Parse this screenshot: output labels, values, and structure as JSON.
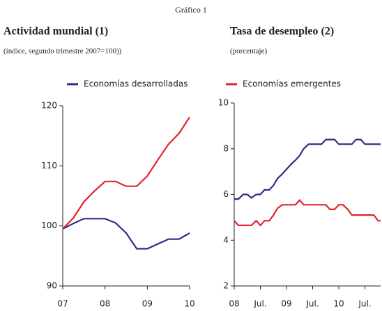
{
  "title": "Gráfico 1",
  "chart_data": [
    {
      "type": "line",
      "title": "Actividad mundial (1)",
      "subtitle": "(índice, segundo trimestre 2007=100))",
      "xlim": [
        2007,
        2010
      ],
      "ylim": [
        90,
        120
      ],
      "xticks": [
        {
          "value": 2007,
          "label": "07"
        },
        {
          "value": 2008,
          "label": "08"
        },
        {
          "value": 2009,
          "label": "09"
        },
        {
          "value": 2010,
          "label": "10"
        }
      ],
      "yticks": [
        90,
        100,
        110,
        120
      ],
      "x": [
        2007,
        2007.25,
        2007.5,
        2007.75,
        2008,
        2008.25,
        2008.5,
        2008.75,
        2009,
        2009.25,
        2009.5,
        2009.75,
        2010
      ],
      "series": [
        {
          "name": "Economías desarrolladas",
          "color": "#2b2f86",
          "values": [
            99.5,
            100.4,
            101.2,
            101.2,
            101.2,
            100.5,
            98.8,
            96.2,
            96.2,
            97,
            97.8,
            97.8,
            98.8
          ]
        },
        {
          "name": "Economías emergentes",
          "color": "#e3222b",
          "values": [
            99.5,
            101.3,
            104,
            105.8,
            107.4,
            107.4,
            106.6,
            106.6,
            108.3,
            111,
            113.6,
            115.4,
            118.1
          ]
        }
      ]
    },
    {
      "type": "line",
      "title": "Tasa de desempleo (2)",
      "subtitle": "(porcentaje)",
      "xlim": [
        2008,
        2010.8
      ],
      "ylim": [
        2,
        10
      ],
      "xticks": [
        {
          "value": 2008,
          "label": "08"
        },
        {
          "value": 2008.5,
          "label": "Jul."
        },
        {
          "value": 2009,
          "label": "09"
        },
        {
          "value": 2009.5,
          "label": "Jul."
        },
        {
          "value": 2010,
          "label": "10"
        },
        {
          "value": 2010.5,
          "label": "Jul."
        }
      ],
      "yticks": [
        2,
        4,
        6,
        8,
        10
      ],
      "x": [
        2008,
        2008.08,
        2008.17,
        2008.25,
        2008.33,
        2008.42,
        2008.5,
        2008.58,
        2008.67,
        2008.75,
        2008.83,
        2008.92,
        2009,
        2009.08,
        2009.17,
        2009.25,
        2009.33,
        2009.42,
        2009.5,
        2009.58,
        2009.67,
        2009.75,
        2009.83,
        2009.92,
        2010,
        2010.08,
        2010.17,
        2010.25,
        2010.33,
        2010.42,
        2010.5,
        2010.58,
        2010.67,
        2010.75,
        2010.8
      ],
      "series": [
        {
          "color": "#2b2f86",
          "values": [
            5.8,
            5.8,
            6.0,
            6.0,
            5.85,
            6.0,
            6.0,
            6.2,
            6.2,
            6.4,
            6.7,
            6.9,
            7.1,
            7.3,
            7.5,
            7.7,
            8.0,
            8.2,
            8.2,
            8.2,
            8.2,
            8.4,
            8.4,
            8.4,
            8.2,
            8.2,
            8.2,
            8.2,
            8.4,
            8.4,
            8.2,
            8.2,
            8.2,
            8.2,
            8.2
          ]
        },
        {
          "color": "#e3222b",
          "values": [
            4.85,
            4.65,
            4.65,
            4.65,
            4.65,
            4.85,
            4.65,
            4.85,
            4.85,
            5.1,
            5.4,
            5.55,
            5.55,
            5.55,
            5.55,
            5.75,
            5.55,
            5.55,
            5.55,
            5.55,
            5.55,
            5.55,
            5.35,
            5.35,
            5.55,
            5.55,
            5.35,
            5.1,
            5.1,
            5.1,
            5.1,
            5.1,
            5.1,
            4.85,
            4.85
          ]
        }
      ]
    }
  ]
}
